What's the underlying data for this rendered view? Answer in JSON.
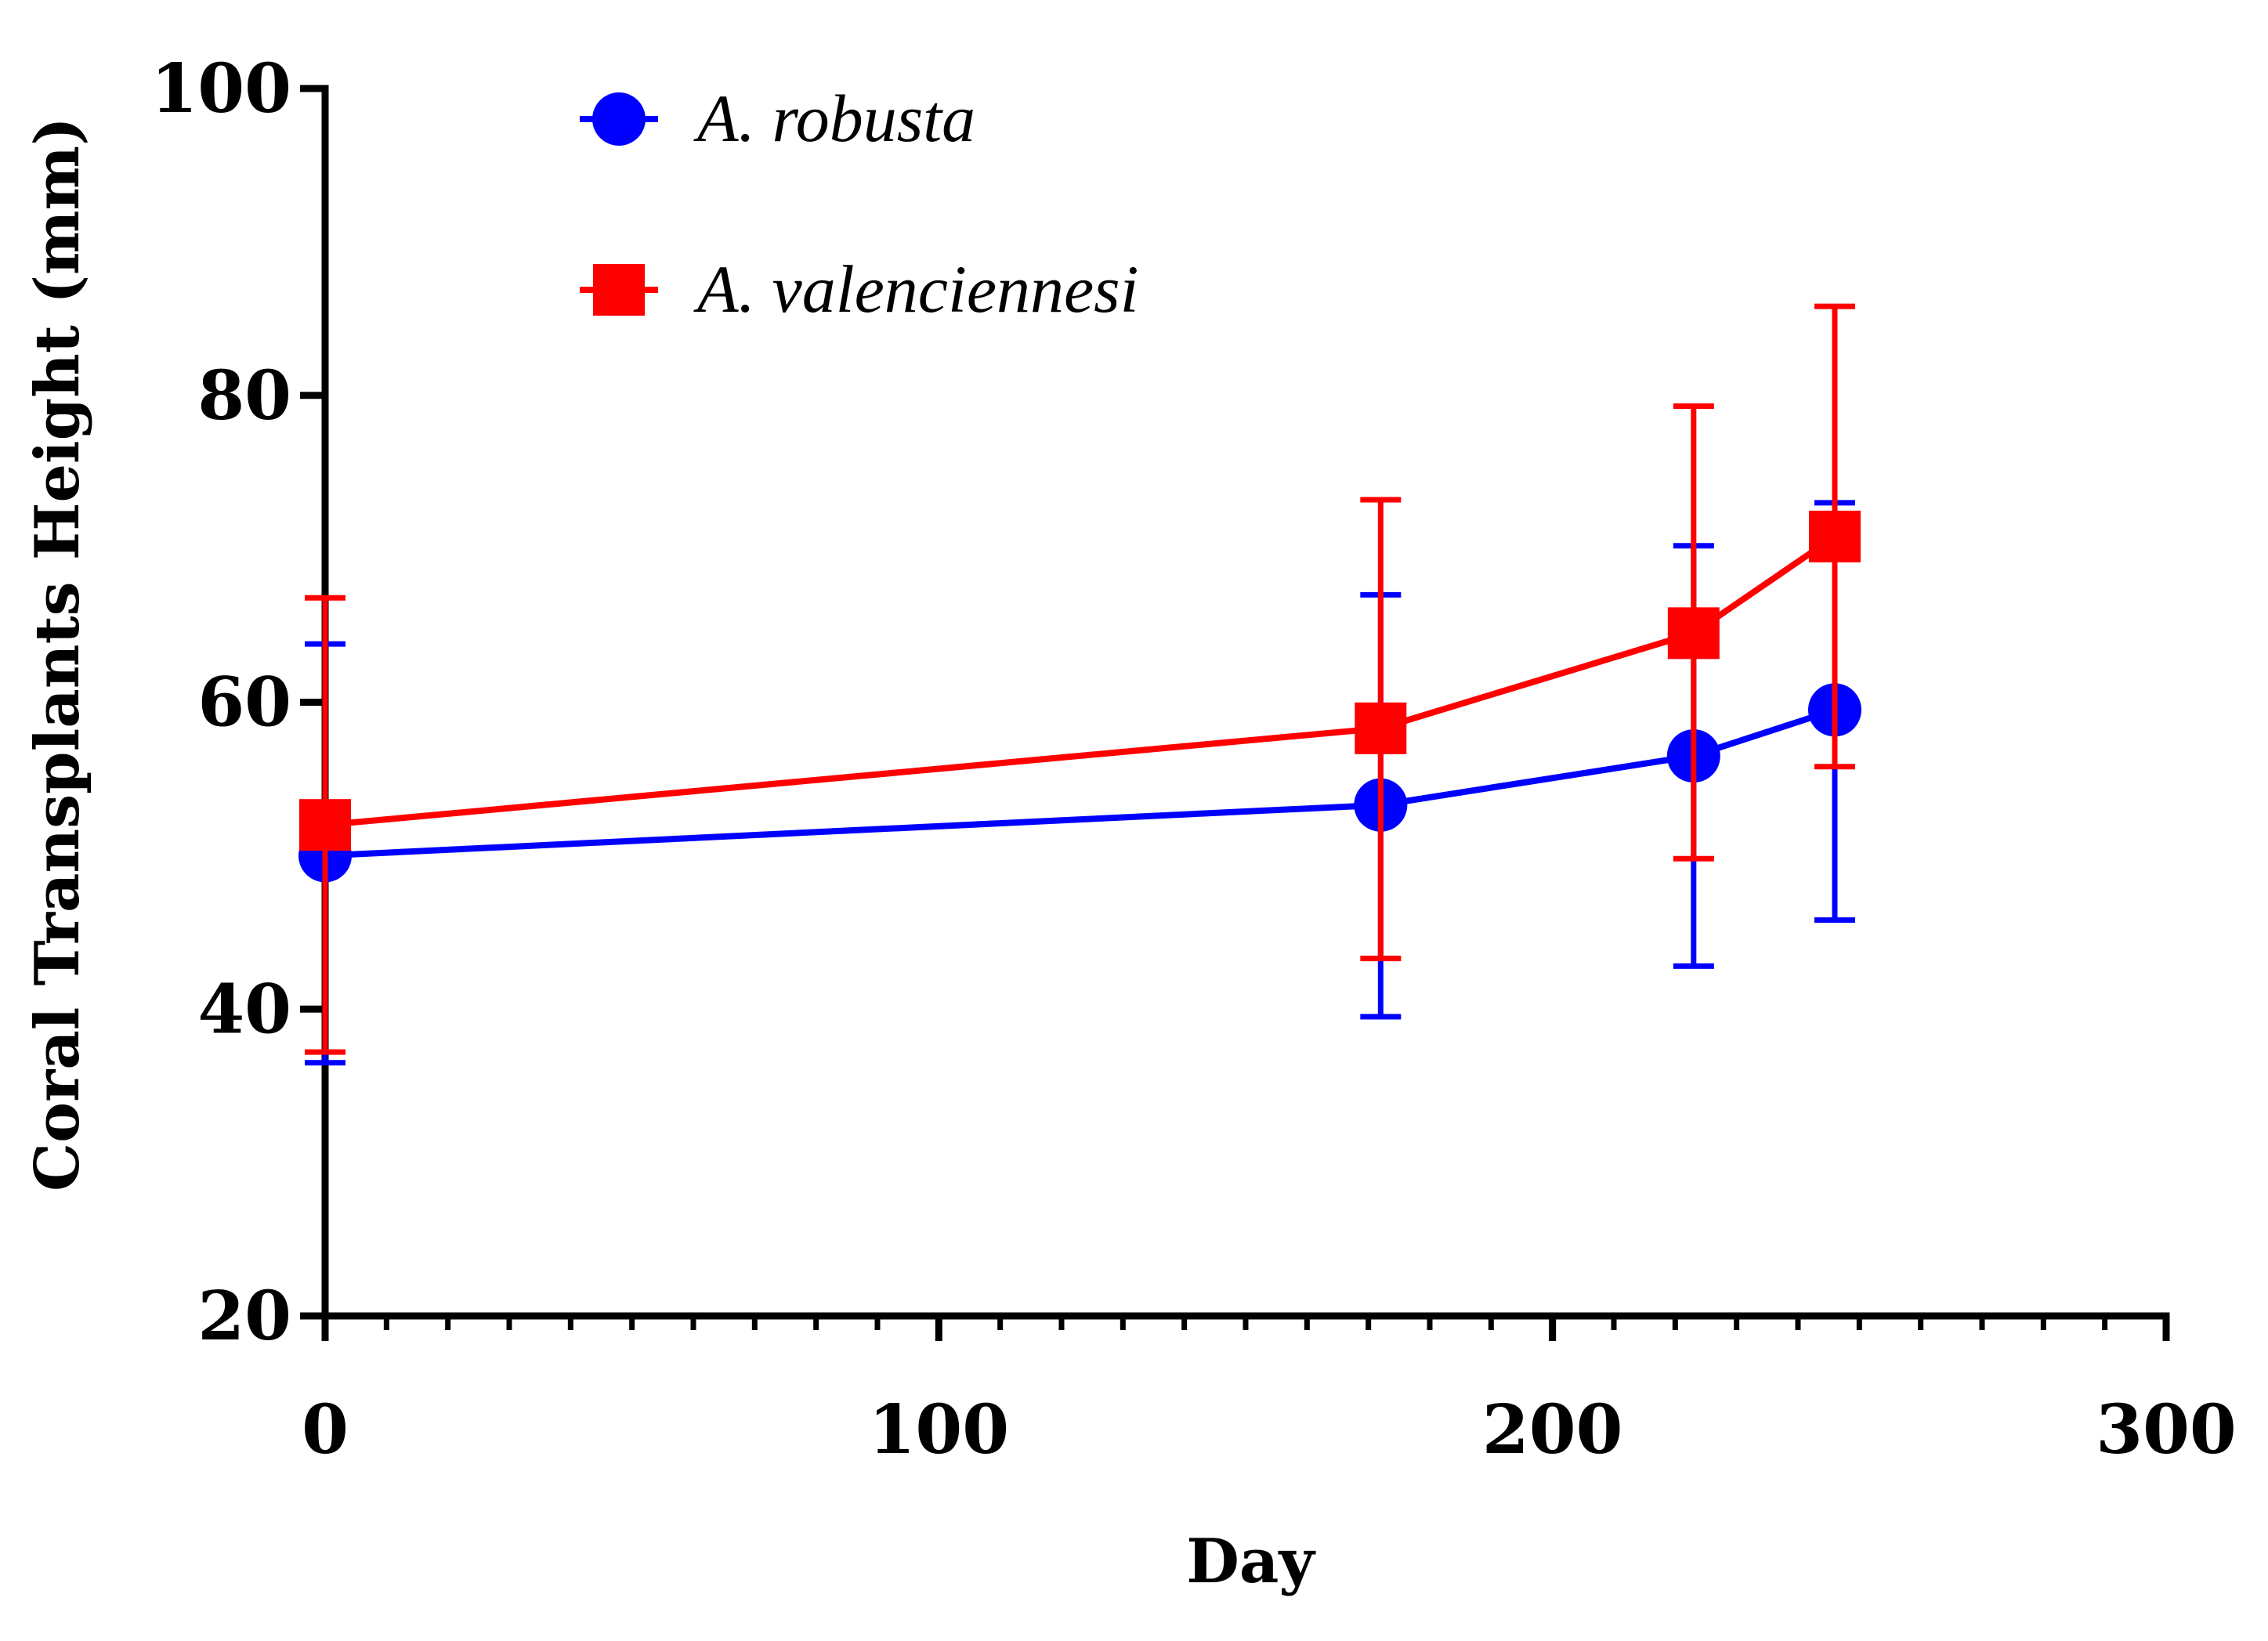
{
  "chart_data": {
    "type": "line",
    "xlabel": "Day",
    "ylabel": "Coral Transplants Height (mm)",
    "xlim": [
      0,
      300
    ],
    "ylim": [
      20,
      100
    ],
    "xticks": [
      0,
      100,
      200,
      300
    ],
    "yticks": [
      20,
      40,
      60,
      80,
      100
    ],
    "grid": false,
    "legend_position": "top-left",
    "error_bars": true,
    "series": [
      {
        "name": "A. robusta",
        "color": "#0000ff",
        "marker": "circle",
        "x": [
          0,
          172,
          223,
          246
        ],
        "y": [
          50.0,
          53.3,
          56.5,
          59.5
        ],
        "err_low": [
          36.5,
          39.5,
          42.8,
          45.8
        ],
        "err_high": [
          63.8,
          67.0,
          70.2,
          73.0
        ]
      },
      {
        "name": "A. valenciennesi",
        "color": "#ff0000",
        "marker": "square",
        "x": [
          0,
          172,
          223,
          246
        ],
        "y": [
          52.0,
          58.3,
          64.5,
          70.8
        ],
        "err_low": [
          37.2,
          43.3,
          49.8,
          55.8
        ],
        "err_high": [
          66.8,
          73.2,
          79.3,
          85.8
        ]
      }
    ]
  }
}
